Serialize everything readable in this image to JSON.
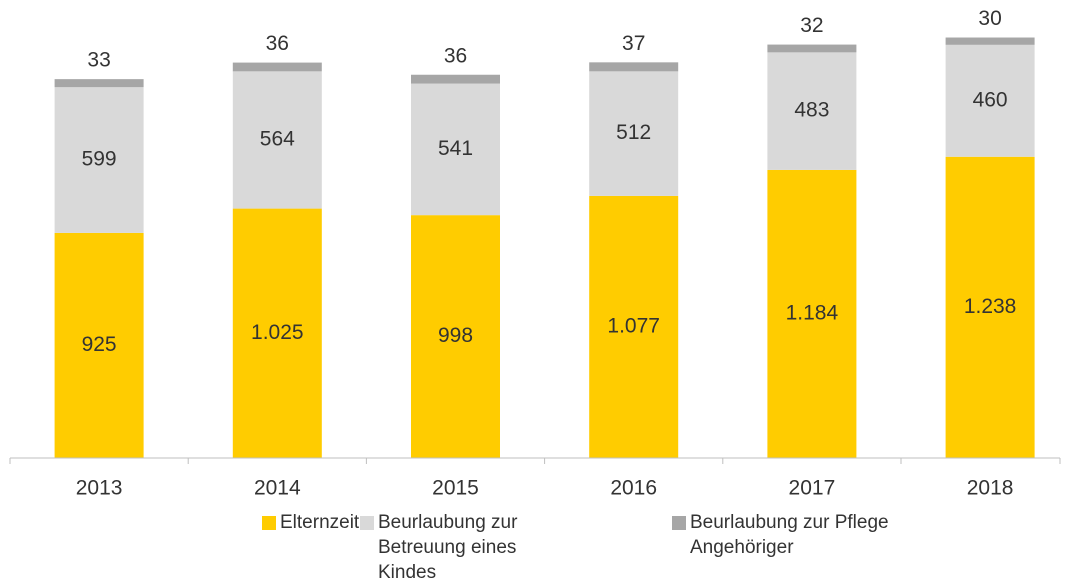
{
  "chart_data": {
    "type": "stacked_bar",
    "categories": [
      "2013",
      "2014",
      "2015",
      "2016",
      "2017",
      "2018"
    ],
    "series": [
      {
        "name": "Elternzeit",
        "color": "#ffcc00",
        "values": [
          925,
          1025,
          998,
          1077,
          1184,
          1238
        ],
        "value_labels": [
          "925",
          "1.025",
          "998",
          "1.077",
          "1.184",
          "1.238"
        ]
      },
      {
        "name": "Beurlaubung zur Betreuung eines Kindes",
        "color": "#d9d9d9",
        "values": [
          599,
          564,
          541,
          512,
          483,
          460
        ]
      },
      {
        "name": "Beurlaubung zur Pflege Angehöriger",
        "color": "#a6a6a6",
        "values": [
          33,
          36,
          36,
          37,
          32,
          30
        ]
      }
    ],
    "ylim": [
      0,
      1800
    ],
    "legend": "bottom"
  }
}
